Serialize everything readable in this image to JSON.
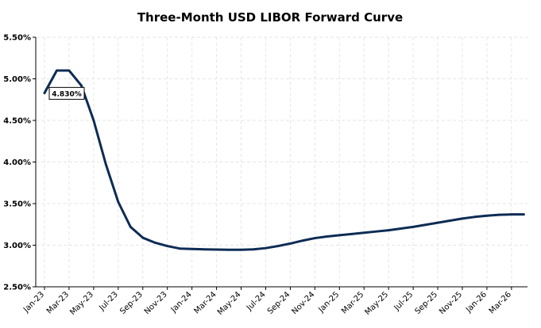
{
  "chart_data": {
    "type": "line",
    "title": "Three-Month USD LIBOR Forward Curve",
    "xlabel": "",
    "ylabel": "",
    "x": [
      "Jan-23",
      "Feb-23",
      "Mar-23",
      "Apr-23",
      "May-23",
      "Jun-23",
      "Jul-23",
      "Aug-23",
      "Sep-23",
      "Oct-23",
      "Nov-23",
      "Dec-23",
      "Jan-24",
      "Feb-24",
      "Mar-24",
      "Apr-24",
      "May-24",
      "Jun-24",
      "Jul-24",
      "Aug-24",
      "Sep-24",
      "Oct-24",
      "Nov-24",
      "Dec-24",
      "Jan-25",
      "Feb-25",
      "Mar-25",
      "Apr-25",
      "May-25",
      "Jun-25",
      "Jul-25",
      "Aug-25",
      "Sep-25",
      "Oct-25",
      "Nov-25",
      "Dec-25",
      "Jan-26",
      "Feb-26",
      "Mar-26",
      "Apr-26"
    ],
    "x_tick_labels": [
      "Jan-23",
      "Mar-23",
      "May-23",
      "Jul-23",
      "Sep-23",
      "Nov-23",
      "Jan-24",
      "Mar-24",
      "May-24",
      "Jul-24",
      "Sep-24",
      "Nov-24",
      "Jan-25",
      "Mar-25",
      "May-25",
      "Jul-25",
      "Sep-25",
      "Nov-25",
      "Jan-26",
      "Mar-26"
    ],
    "series": [
      {
        "values": [
          4.83,
          5.1,
          5.1,
          4.92,
          4.5,
          3.97,
          3.52,
          3.22,
          3.09,
          3.03,
          2.99,
          2.96,
          2.955,
          2.95,
          2.948,
          2.945,
          2.945,
          2.95,
          2.965,
          2.99,
          3.02,
          3.055,
          3.085,
          3.105,
          3.12,
          3.135,
          3.15,
          3.165,
          3.18,
          3.2,
          3.22,
          3.245,
          3.27,
          3.295,
          3.32,
          3.34,
          3.355,
          3.365,
          3.37,
          3.37
        ]
      }
    ],
    "y_tick_labels": [
      "2.50%",
      "3.00%",
      "3.50%",
      "4.00%",
      "4.50%",
      "5.00%",
      "5.50%"
    ],
    "ylim": [
      2.5,
      5.5
    ],
    "grid": true,
    "annotation": {
      "label": "4.830%",
      "x": "Jan-23",
      "y": 4.83
    },
    "colors": {
      "series": "#0d2c54",
      "grid": "#e6e6e6",
      "axis": "#000000"
    }
  }
}
